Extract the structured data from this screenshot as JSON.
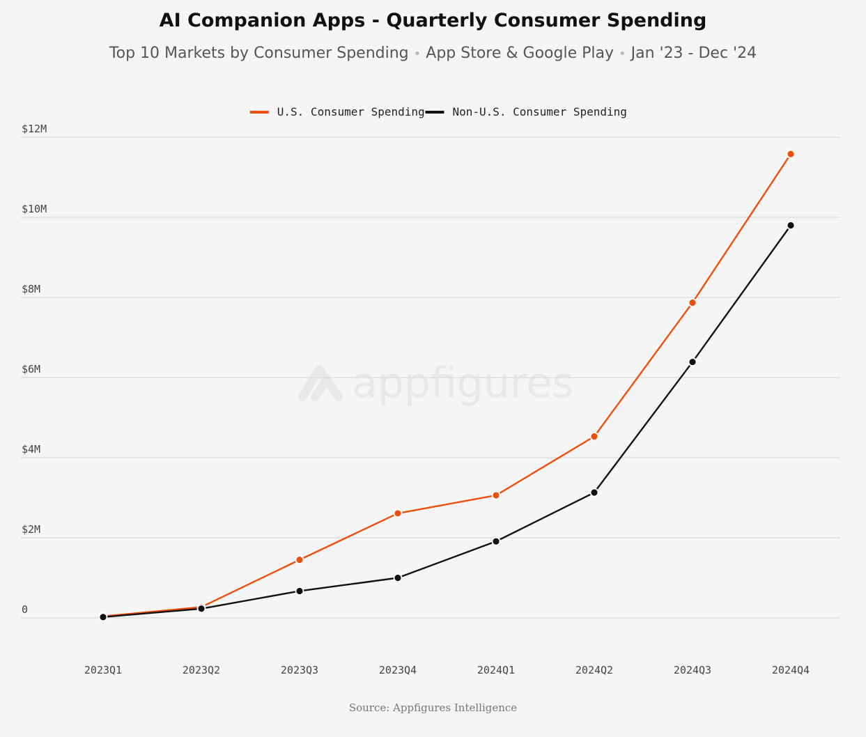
{
  "subtitle_parts": [
    "Top 10 Markets by Consumer Spending",
    "App Store & Google Play",
    "Jan '23 - Dec '24"
  ],
  "watermark": "appfigures",
  "source": "Source: Appfigures Intelligence",
  "chart_data": {
    "type": "line",
    "title": "AI Companion Apps - Quarterly Consumer Spending",
    "categories": [
      "2023Q1",
      "2023Q2",
      "2023Q3",
      "2023Q4",
      "2024Q1",
      "2024Q2",
      "2024Q3",
      "2024Q4"
    ],
    "series": [
      {
        "name": "U.S. Consumer Spending",
        "color": "#f04e0c",
        "values": [
          40000,
          270000,
          1450000,
          2610000,
          3060000,
          4530000,
          7870000,
          11580000
        ]
      },
      {
        "name": "Non-U.S. Consumer Spending",
        "color": "#111111",
        "values": [
          20000,
          230000,
          670000,
          1000000,
          1910000,
          3130000,
          6390000,
          9800000
        ]
      }
    ],
    "yticks": [
      {
        "value": 0,
        "label": "0"
      },
      {
        "value": 2000000,
        "label": "$2M"
      },
      {
        "value": 4000000,
        "label": "$4M"
      },
      {
        "value": 6000000,
        "label": "$6M"
      },
      {
        "value": 8000000,
        "label": "$8M"
      },
      {
        "value": 10000000,
        "label": "$10M"
      },
      {
        "value": 12000000,
        "label": "$12M"
      }
    ],
    "ylim": [
      0,
      12000000
    ],
    "xlabel": "",
    "ylabel": "",
    "grid": true,
    "legend_position": "top-center"
  }
}
